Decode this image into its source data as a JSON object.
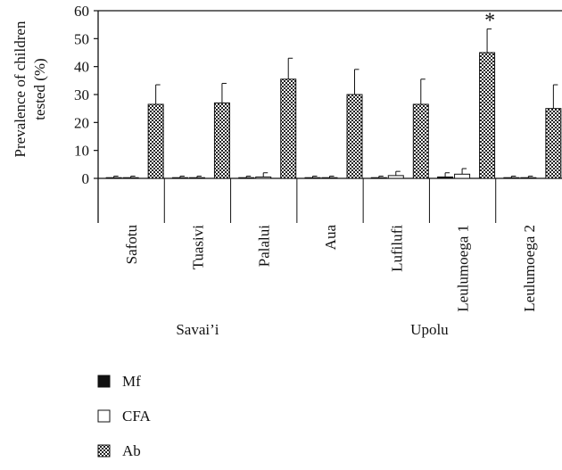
{
  "chart_data": {
    "type": "bar",
    "ylabel_lines": [
      "Prevalence of children",
      "tested (%)"
    ],
    "ylim": [
      0,
      60
    ],
    "yticks": [
      0,
      10,
      20,
      30,
      40,
      50,
      60
    ],
    "categories": [
      "Safotu",
      "Tuasivi",
      "Palalui",
      "Aua",
      "Lufilufi",
      "Leulumoega 1",
      "Leulumoega 2"
    ],
    "groups": [
      {
        "label": "Savai’i",
        "categories": [
          "Safotu",
          "Tuasivi",
          "Palalui"
        ]
      },
      {
        "label": "Upolu",
        "categories": [
          "Aua",
          "Lufilufi",
          "Leulumoega 1",
          "Leulumoega 2"
        ]
      }
    ],
    "series": [
      {
        "name": "Mf",
        "pattern": "solid",
        "color": "#111111",
        "values": [
          0,
          0,
          0,
          0,
          0,
          0.5,
          0
        ],
        "errors": [
          0.8,
          0.8,
          0.8,
          0.8,
          0.8,
          1.5,
          0.8
        ]
      },
      {
        "name": "CFA",
        "pattern": "open",
        "color": "#ffffff",
        "values": [
          0,
          0,
          0.5,
          0,
          1,
          1.5,
          0
        ],
        "errors": [
          0.8,
          0.8,
          1.5,
          0.8,
          1.5,
          2,
          0.8
        ]
      },
      {
        "name": "Ab",
        "pattern": "checker",
        "color": "#444444",
        "values": [
          26.5,
          27,
          35.5,
          30,
          26.5,
          45,
          25
        ],
        "errors": [
          7,
          7,
          7.5,
          9,
          9,
          8.5,
          8.5
        ]
      }
    ],
    "annotations": [
      {
        "category": "Leulumoega 1",
        "series": "Ab",
        "text": "*"
      }
    ],
    "legend": {
      "placement": "bottom-left"
    }
  }
}
